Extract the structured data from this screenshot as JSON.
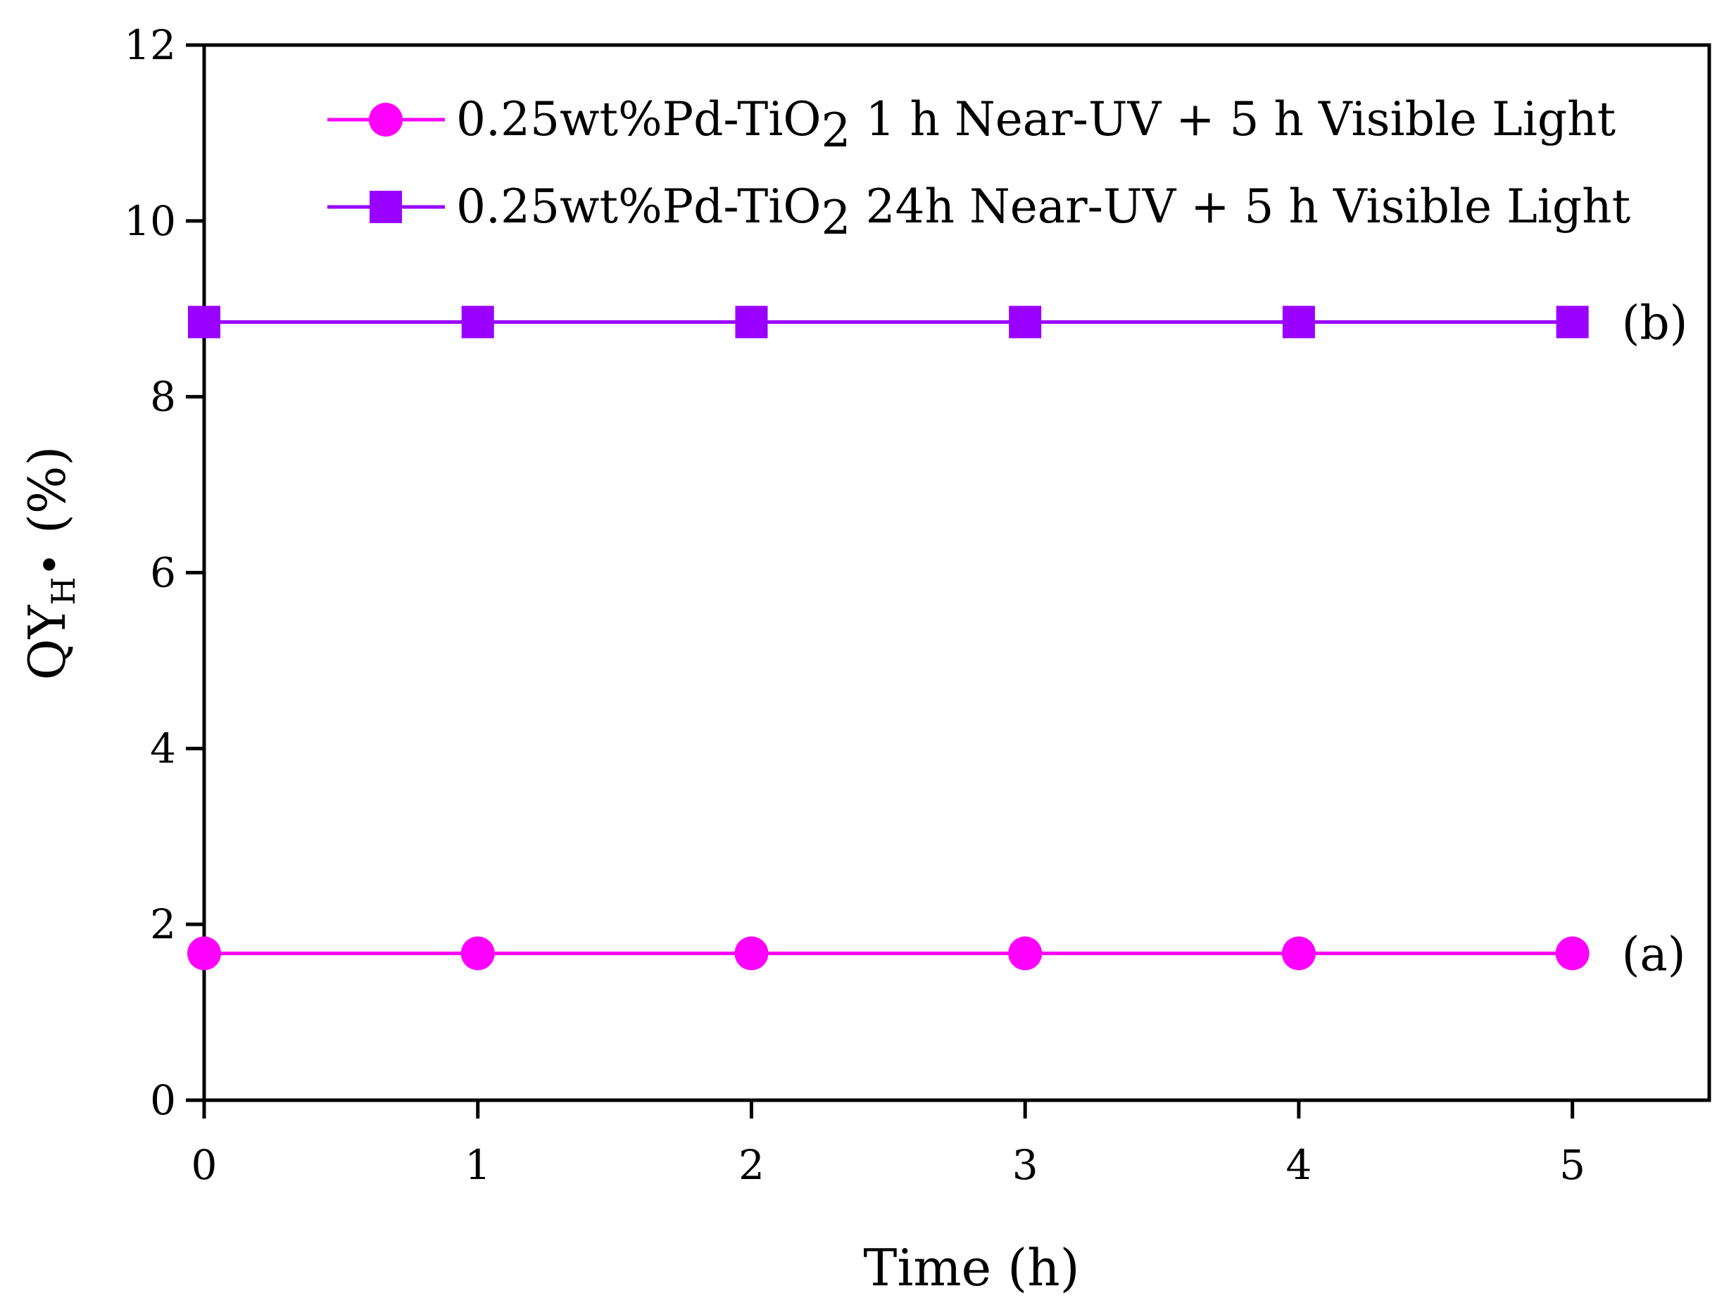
{
  "chart_data": {
    "type": "line",
    "title": "",
    "xlabel": "Time (h)",
    "ylabel": {
      "main": "QY",
      "subscript": "H",
      "marker": "•",
      "unit": "(%)"
    },
    "x": [
      0,
      1,
      2,
      3,
      4,
      5
    ],
    "xlim": [
      0,
      5.5
    ],
    "ylim": [
      0,
      12
    ],
    "xticks": [
      0,
      1,
      2,
      3,
      4,
      5
    ],
    "yticks": [
      0,
      2,
      4,
      6,
      8,
      10,
      12
    ],
    "grid": false,
    "legend_position": "top-right",
    "series": [
      {
        "name": "0.25wt%Pd-TiO2  1 h Near-UV + 5 h Visible Light",
        "legend_text_before_subscript": "0.25wt%Pd-TiO",
        "legend_subscript": "2",
        "legend_text_after_subscript": "  1 h Near-UV + 5 h Visible Light",
        "marker": "circle",
        "color": "#ff00ff",
        "tag": "(a)",
        "values": [
          1.67,
          1.67,
          1.67,
          1.67,
          1.67,
          1.67
        ]
      },
      {
        "name": "0.25wt%Pd-TiO2 24h Near-UV + 5 h Visible Light",
        "legend_text_before_subscript": "0.25wt%Pd-TiO",
        "legend_subscript": "2",
        "legend_text_after_subscript": " 24h Near-UV + 5 h Visible Light",
        "marker": "square",
        "color": "#9900ff",
        "tag": "(b)",
        "values": [
          8.85,
          8.85,
          8.85,
          8.85,
          8.85,
          8.85
        ]
      }
    ]
  }
}
